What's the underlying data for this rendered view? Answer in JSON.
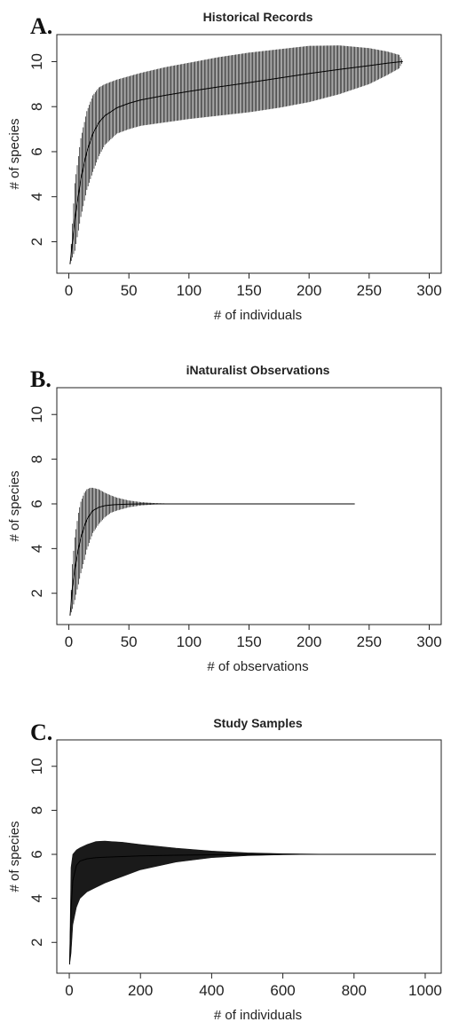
{
  "chart_data": [
    {
      "type": "area",
      "panel_letter": "A.",
      "title": "Historical Records",
      "xlabel": "# of individuals",
      "ylabel": "# of species",
      "xlim": [
        -10,
        310
      ],
      "ylim": [
        0.6,
        11.2
      ],
      "xticks": [
        0,
        50,
        100,
        150,
        200,
        250,
        300
      ],
      "yticks": [
        2,
        4,
        6,
        8,
        10
      ],
      "band_style": "hatched",
      "x": [
        1,
        5,
        10,
        15,
        20,
        25,
        30,
        40,
        50,
        60,
        80,
        100,
        125,
        150,
        175,
        200,
        225,
        250,
        265,
        275,
        278
      ],
      "mean": [
        1.0,
        3.0,
        4.8,
        6.0,
        6.8,
        7.3,
        7.6,
        7.95,
        8.15,
        8.3,
        8.5,
        8.68,
        8.88,
        9.07,
        9.27,
        9.47,
        9.65,
        9.82,
        9.93,
        9.99,
        10.0
      ],
      "upper": [
        1.0,
        4.6,
        6.6,
        7.8,
        8.5,
        8.85,
        9.0,
        9.2,
        9.35,
        9.5,
        9.75,
        9.95,
        10.2,
        10.4,
        10.55,
        10.7,
        10.72,
        10.6,
        10.45,
        10.3,
        10.0
      ],
      "lower": [
        1.0,
        1.6,
        3.1,
        4.3,
        5.1,
        5.8,
        6.3,
        6.8,
        7.0,
        7.15,
        7.3,
        7.45,
        7.6,
        7.75,
        7.95,
        8.2,
        8.55,
        9.0,
        9.4,
        9.7,
        10.0
      ]
    },
    {
      "type": "area",
      "panel_letter": "B.",
      "title": "iNaturalist Observations",
      "xlabel": "# of observations",
      "ylabel": "# of species",
      "xlim": [
        -10,
        310
      ],
      "ylim": [
        0.6,
        11.2
      ],
      "xticks": [
        0,
        50,
        100,
        150,
        200,
        250,
        300
      ],
      "yticks": [
        2,
        4,
        6,
        8,
        10
      ],
      "band_style": "hatched",
      "x": [
        1,
        3,
        5,
        8,
        10,
        13,
        15,
        18,
        20,
        25,
        30,
        35,
        40,
        50,
        60,
        70,
        80,
        90,
        100,
        120,
        150,
        200,
        238
      ],
      "mean": [
        1.0,
        2.3,
        3.1,
        4.0,
        4.5,
        5.0,
        5.3,
        5.55,
        5.7,
        5.85,
        5.92,
        5.95,
        5.97,
        5.99,
        6.0,
        6.0,
        6.0,
        6.0,
        6.0,
        6.0,
        6.0,
        6.0,
        6.0
      ],
      "upper": [
        1.0,
        3.3,
        4.5,
        5.6,
        6.1,
        6.5,
        6.65,
        6.72,
        6.72,
        6.65,
        6.5,
        6.38,
        6.28,
        6.15,
        6.08,
        6.04,
        6.02,
        6.01,
        6.0,
        6.0,
        6.0,
        6.0,
        6.0
      ],
      "lower": [
        1.0,
        1.3,
        1.7,
        2.4,
        2.9,
        3.5,
        3.95,
        4.4,
        4.7,
        5.1,
        5.4,
        5.6,
        5.7,
        5.85,
        5.93,
        5.97,
        5.99,
        6.0,
        6.0,
        6.0,
        6.0,
        6.0,
        6.0
      ]
    },
    {
      "type": "area",
      "panel_letter": "C.",
      "title": "Study Samples",
      "xlabel": "# of individuals",
      "ylabel": "# of species",
      "xlim": [
        -35,
        1045
      ],
      "ylim": [
        0.6,
        11.2
      ],
      "xticks": [
        0,
        200,
        400,
        600,
        800,
        1000
      ],
      "yticks": [
        2,
        4,
        6,
        8,
        10
      ],
      "band_style": "solid",
      "x": [
        1,
        5,
        10,
        20,
        30,
        50,
        75,
        100,
        150,
        200,
        300,
        400,
        500,
        600,
        700,
        800,
        900,
        1000,
        1030
      ],
      "mean": [
        1.0,
        3.5,
        4.8,
        5.5,
        5.7,
        5.8,
        5.85,
        5.87,
        5.9,
        5.93,
        5.96,
        5.98,
        5.99,
        6.0,
        6.0,
        6.0,
        6.0,
        6.0,
        6.0
      ],
      "upper": [
        1.0,
        5.4,
        6.0,
        6.2,
        6.3,
        6.45,
        6.58,
        6.6,
        6.55,
        6.45,
        6.28,
        6.15,
        6.07,
        6.03,
        6.01,
        6.0,
        6.0,
        6.0,
        6.0
      ],
      "lower": [
        1.0,
        1.5,
        2.8,
        3.6,
        4.0,
        4.3,
        4.5,
        4.7,
        5.0,
        5.3,
        5.65,
        5.85,
        5.94,
        5.98,
        6.0,
        6.0,
        6.0,
        6.0,
        6.0
      ]
    }
  ]
}
